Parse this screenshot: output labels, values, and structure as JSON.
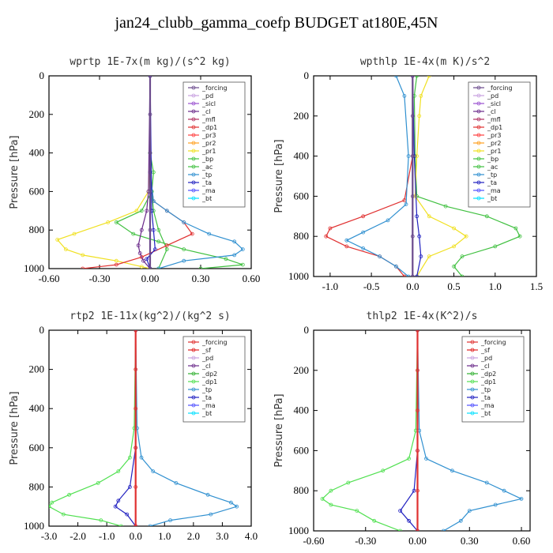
{
  "figure_title": "jan24_clubb_gamma_coefp  BUDGET at180E,45N",
  "colors": {
    "forcing": "#6a4a8c",
    "pd": "#c8a0e0",
    "sicl": "#9a50d0",
    "cl": "#6a2a8a",
    "mfl": "#b03060",
    "dp1": "#e03030",
    "pr3": "#ff4040",
    "pr2": "#ffa020",
    "pr1": "#f0e020",
    "bp": "#40c040",
    "ac": "#40c040",
    "tp": "#3090d0",
    "ta": "#2020c0",
    "ma": "#5050ff",
    "bt": "#00e0ff",
    "sf": "#e02020",
    "dp2": "#30b030",
    "dp1_green": "#50e050",
    "black": "#000000"
  },
  "chart_data": [
    {
      "type": "line",
      "title": "wprtp  1E-7x(m kg)/(s^2 kg)",
      "ylabel": "Pressure [hPa]",
      "xlim": [
        -0.6,
        0.6
      ],
      "ylim": [
        1000,
        0
      ],
      "xticks": [
        "-0.60",
        "-0.30",
        "0.00",
        "0.30",
        "0.60"
      ],
      "xtick_values": [
        -0.6,
        -0.3,
        0,
        0.3,
        0.6
      ],
      "yticks": [
        "0",
        "200",
        "400",
        "600",
        "800",
        "1000"
      ],
      "ytick_values": [
        0,
        200,
        400,
        600,
        800,
        1000
      ],
      "legend": [
        "_forcing",
        "_pd",
        "_sicl",
        "_cl",
        "_mfl",
        "_dp1",
        "_pr3",
        "_pr2",
        "_pr1",
        "_bp",
        "_ac",
        "_tp",
        "_ta",
        "_ma",
        "_bt"
      ],
      "series": [
        {
          "name": "_pr1",
          "color": "pr1",
          "y": [
            0,
            400,
            600,
            700,
            760,
            820,
            850,
            900,
            930,
            960,
            990,
            1000
          ],
          "x": [
            0,
            0,
            -0.01,
            -0.08,
            -0.25,
            -0.45,
            -0.55,
            -0.5,
            -0.4,
            -0.2,
            -0.05,
            0
          ]
        },
        {
          "name": "_ac",
          "color": "ac",
          "y": [
            0,
            400,
            500,
            600,
            700,
            760,
            820,
            860,
            900,
            950,
            980,
            1000
          ],
          "x": [
            0,
            0,
            0.02,
            0.01,
            -0.05,
            -0.2,
            -0.1,
            0.05,
            0.2,
            0.45,
            0.55,
            0.3
          ]
        },
        {
          "name": "_bp",
          "color": "bp",
          "y": [
            0,
            400,
            600,
            700,
            800,
            900,
            1000
          ],
          "x": [
            0,
            0,
            0.01,
            0.02,
            0.05,
            0.1,
            0.05
          ]
        },
        {
          "name": "_dp1",
          "color": "dp1",
          "y": [
            0,
            500,
            650,
            700,
            760,
            820,
            880,
            940,
            980,
            1000
          ],
          "x": [
            0,
            0,
            0.02,
            0.1,
            0.2,
            0.25,
            0.1,
            -0.05,
            -0.2,
            -0.4
          ]
        },
        {
          "name": "_tp",
          "color": "tp",
          "y": [
            0,
            500,
            650,
            700,
            760,
            820,
            860,
            900,
            930,
            960,
            1000
          ],
          "x": [
            0,
            0,
            0.02,
            0.1,
            0.2,
            0.35,
            0.5,
            0.55,
            0.5,
            0.2,
            0.05
          ]
        },
        {
          "name": "_cl",
          "color": "cl",
          "y": [
            0,
            600,
            700,
            800,
            880,
            920,
            960,
            1000
          ],
          "x": [
            0,
            -0.01,
            -0.02,
            -0.05,
            -0.07,
            -0.06,
            -0.04,
            0
          ]
        },
        {
          "name": "_ta",
          "color": "ta",
          "y": [
            0,
            700,
            800,
            900,
            950,
            1000
          ],
          "x": [
            0,
            0.01,
            0.02,
            0.03,
            -0.02,
            0
          ]
        },
        {
          "name": "_forcing",
          "color": "forcing",
          "y": [
            0,
            200,
            400,
            600,
            800,
            1000
          ],
          "x": [
            0,
            0,
            0,
            0,
            0,
            0
          ]
        }
      ]
    },
    {
      "type": "line",
      "title": "wpthlp  1E-4x(m K)/s^2",
      "ylabel": "Pressure [hPa]",
      "xlim": [
        -1.2,
        1.5
      ],
      "ylim": [
        1000,
        0
      ],
      "xticks": [
        "-1.0",
        "-0.5",
        "0.0",
        "0.5",
        "1.0",
        "1.5"
      ],
      "xtick_values": [
        -1.0,
        -0.5,
        0,
        0.5,
        1.0,
        1.5
      ],
      "yticks": [
        "0",
        "200",
        "400",
        "600",
        "800",
        "1000"
      ],
      "ytick_values": [
        0,
        200,
        400,
        600,
        800,
        1000
      ],
      "legend": [
        "_forcing",
        "_pd",
        "_sicl",
        "_cl",
        "_mfl",
        "_dp1",
        "_pr3",
        "_pr2",
        "_pr1",
        "_bp",
        "_ac",
        "_tp",
        "_ta",
        "_ma",
        "_bt"
      ],
      "series": [
        {
          "name": "_ac",
          "color": "ac",
          "y": [
            0,
            100,
            400,
            600,
            650,
            700,
            760,
            800,
            850,
            900,
            950,
            1000
          ],
          "x": [
            0.05,
            0.02,
            0.03,
            0.05,
            0.4,
            0.9,
            1.25,
            1.3,
            1.0,
            0.6,
            0.5,
            0.6
          ]
        },
        {
          "name": "_pr1",
          "color": "pr1",
          "y": [
            0,
            100,
            200,
            400,
            600,
            700,
            760,
            800,
            850,
            900,
            1000
          ],
          "x": [
            0.2,
            0.1,
            0.08,
            0.05,
            0.03,
            0.2,
            0.5,
            0.65,
            0.5,
            0.2,
            0.05
          ]
        },
        {
          "name": "_dp1",
          "color": "dp1",
          "y": [
            0,
            400,
            620,
            700,
            760,
            800,
            850,
            900,
            950,
            1000
          ],
          "x": [
            0,
            0,
            -0.1,
            -0.6,
            -1.0,
            -1.05,
            -0.8,
            -0.4,
            -0.2,
            -0.1
          ]
        },
        {
          "name": "_tp",
          "color": "tp",
          "y": [
            0,
            100,
            400,
            640,
            720,
            780,
            820,
            860,
            900,
            950,
            1000
          ],
          "x": [
            -0.2,
            -0.1,
            -0.05,
            -0.08,
            -0.3,
            -0.6,
            -0.8,
            -0.6,
            -0.4,
            -0.2,
            -0.05
          ]
        },
        {
          "name": "_ta",
          "color": "ta",
          "y": [
            0,
            400,
            700,
            800,
            900,
            1000
          ],
          "x": [
            0,
            0.02,
            0.05,
            0.08,
            0.1,
            0.05
          ]
        },
        {
          "name": "_forcing",
          "color": "forcing",
          "y": [
            0,
            200,
            400,
            600,
            800,
            1000
          ],
          "x": [
            0,
            0,
            0,
            0,
            0,
            0
          ]
        }
      ]
    },
    {
      "type": "line",
      "title": "rtp2  1E-11x(kg^2)/(kg^2 s)",
      "ylabel": "Pressure [hPa]",
      "xlim": [
        -3.0,
        4.0
      ],
      "ylim": [
        1000,
        0
      ],
      "xticks": [
        "-3.0",
        "-2.0",
        "-1.0",
        "0.0",
        "1.0",
        "2.0",
        "3.0",
        "4.0"
      ],
      "xtick_values": [
        -3,
        -2,
        -1,
        0,
        1,
        2,
        3,
        4
      ],
      "yticks": [
        "0",
        "200",
        "400",
        "600",
        "800",
        "1000"
      ],
      "ytick_values": [
        0,
        200,
        400,
        600,
        800,
        1000
      ],
      "legend": [
        "_forcing",
        "_sf",
        "_pd",
        "_cl",
        "_dp2",
        "_dp1",
        "_tp",
        "_ta",
        "_ma",
        "_bt"
      ],
      "series": [
        {
          "name": "_dp1",
          "color": "dp1_green",
          "y": [
            0,
            500,
            650,
            720,
            780,
            840,
            880,
            900,
            940,
            970,
            1000
          ],
          "x": [
            0,
            -0.05,
            -0.2,
            -0.6,
            -1.3,
            -2.3,
            -2.9,
            -3.0,
            -2.5,
            -1.2,
            -0.5
          ]
        },
        {
          "name": "_tp",
          "color": "tp",
          "y": [
            0,
            500,
            650,
            720,
            780,
            840,
            880,
            900,
            940,
            970,
            1000
          ],
          "x": [
            0,
            0.05,
            0.2,
            0.6,
            1.4,
            2.5,
            3.3,
            3.5,
            2.6,
            1.2,
            0.5
          ]
        },
        {
          "name": "_ta",
          "color": "ta",
          "y": [
            0,
            600,
            800,
            870,
            900,
            940,
            1000
          ],
          "x": [
            0,
            0,
            -0.2,
            -0.6,
            -0.7,
            -0.3,
            0
          ]
        },
        {
          "name": "_forcing",
          "color": "dp1",
          "y": [
            0,
            200,
            400,
            600,
            800,
            1000
          ],
          "x": [
            0,
            0,
            0,
            0,
            0,
            0
          ]
        }
      ]
    },
    {
      "type": "line",
      "title": "thlp2  1E-4x(K^2)/s",
      "ylabel": "Pressure [hPa]",
      "xlim": [
        -0.6,
        0.65
      ],
      "ylim": [
        1000,
        0
      ],
      "xticks": [
        "-0.60",
        "-0.30",
        "0.00",
        "0.30",
        "0.60"
      ],
      "xtick_values": [
        -0.6,
        -0.3,
        0,
        0.3,
        0.6
      ],
      "yticks": [
        "0",
        "200",
        "400",
        "600",
        "800",
        "1000"
      ],
      "ytick_values": [
        0,
        200,
        400,
        600,
        800,
        1000
      ],
      "legend": [
        "_forcing",
        "_sf",
        "_pd",
        "_cl",
        "_dp2",
        "_dp1",
        "_tp",
        "_ta",
        "_ma",
        "_bt"
      ],
      "series": [
        {
          "name": "_dp1",
          "color": "dp1_green",
          "y": [
            0,
            500,
            640,
            700,
            760,
            800,
            840,
            870,
            900,
            950,
            1000
          ],
          "x": [
            0,
            -0.01,
            -0.05,
            -0.2,
            -0.4,
            -0.5,
            -0.55,
            -0.5,
            -0.35,
            -0.25,
            -0.1
          ]
        },
        {
          "name": "_tp",
          "color": "tp",
          "y": [
            0,
            500,
            640,
            700,
            760,
            800,
            840,
            870,
            900,
            950,
            1000
          ],
          "x": [
            0,
            0.01,
            0.05,
            0.2,
            0.4,
            0.5,
            0.6,
            0.45,
            0.3,
            0.25,
            0.15
          ]
        },
        {
          "name": "_ta",
          "color": "ta",
          "y": [
            0,
            600,
            800,
            900,
            950,
            1000
          ],
          "x": [
            0,
            0,
            -0.02,
            -0.1,
            -0.05,
            0
          ]
        },
        {
          "name": "_forcing",
          "color": "dp1",
          "y": [
            0,
            200,
            400,
            600,
            800,
            1000
          ],
          "x": [
            0,
            0,
            0,
            0,
            0,
            0
          ]
        }
      ]
    }
  ]
}
